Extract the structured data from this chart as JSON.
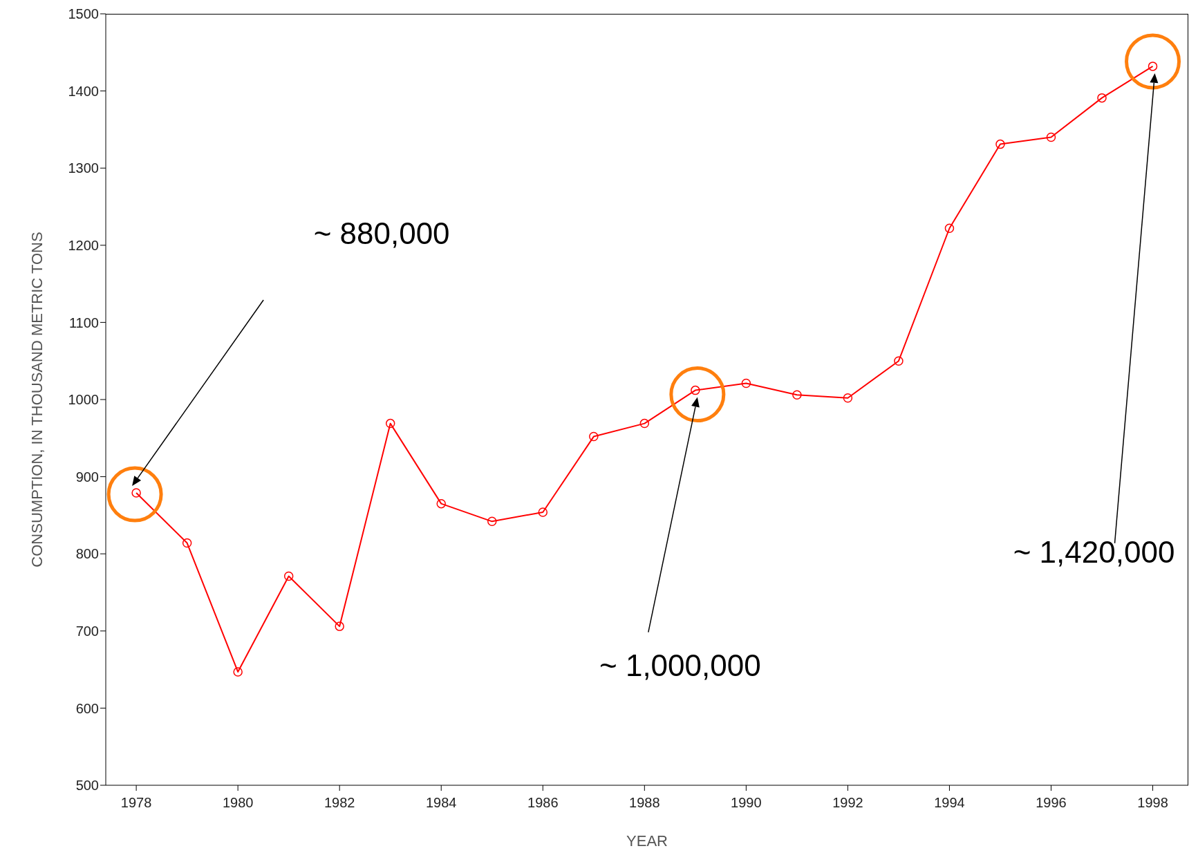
{
  "chart_data": {
    "type": "line",
    "xlabel": "YEAR",
    "ylabel": "CONSUMPTION, IN THOUSAND METRIC TONS",
    "x": [
      1978,
      1979,
      1980,
      1981,
      1982,
      1983,
      1984,
      1985,
      1986,
      1987,
      1988,
      1989,
      1990,
      1991,
      1992,
      1993,
      1994,
      1995,
      1996,
      1997,
      1998
    ],
    "series": [
      {
        "color": "#ff0000",
        "values": [
          879,
          814,
          647,
          771,
          706,
          969,
          865,
          842,
          854,
          952,
          969,
          1012,
          1021,
          1006,
          1002,
          1050,
          1222,
          1331,
          1340,
          1391,
          1432
        ]
      }
    ],
    "xlim": [
      1977.4,
      1998.7
    ],
    "xticks": [
      1978,
      1980,
      1982,
      1984,
      1986,
      1988,
      1990,
      1992,
      1994,
      1996,
      1998
    ],
    "ylim": [
      500,
      1500
    ],
    "yticks": [
      500,
      600,
      700,
      800,
      900,
      1000,
      1100,
      1200,
      1300,
      1400,
      1500
    ],
    "grid": false,
    "marker": "circle",
    "line_style": "solid",
    "annotations": [
      "~ 880,000",
      "~ 1,000,000",
      "~ 1,420,000"
    ]
  }
}
